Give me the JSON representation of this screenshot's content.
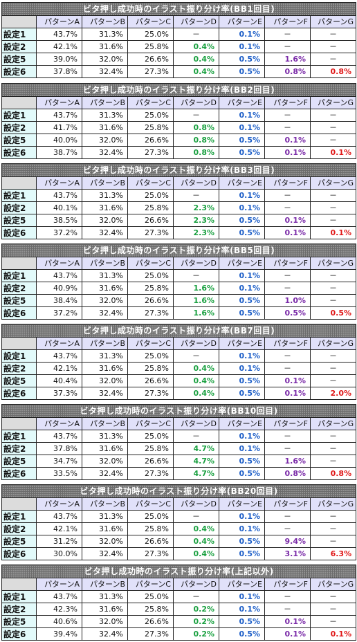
{
  "column_headers": [
    "パターンA",
    "パターンB",
    "パターンC",
    "パターンD",
    "パターンE",
    "パターンF",
    "パターンG"
  ],
  "colors": {
    "green": "#1aa040",
    "blue": "#1e5fc8",
    "purple": "#7a2aa8",
    "red": "#e01818",
    "header_bg": "#6c6c6c",
    "col_header_bg": "#e1e1fa",
    "row_header_bg": "#e2fafa"
  },
  "tables": [
    {
      "title": "ビタ押し成功時のイラスト振り分け率(BB1回目)",
      "rows": [
        {
          "label": "設定1",
          "values": [
            "43.7%",
            "31.3%",
            "25.0%",
            "－",
            "0.1%",
            "－",
            "－"
          ]
        },
        {
          "label": "設定2",
          "values": [
            "42.1%",
            "31.6%",
            "25.8%",
            "0.4%",
            "0.1%",
            "－",
            "－"
          ]
        },
        {
          "label": "設定5",
          "values": [
            "39.0%",
            "32.0%",
            "26.6%",
            "0.4%",
            "0.5%",
            "1.6%",
            "－"
          ]
        },
        {
          "label": "設定6",
          "values": [
            "37.8%",
            "32.4%",
            "27.3%",
            "0.4%",
            "0.5%",
            "0.8%",
            "0.8%"
          ]
        }
      ]
    },
    {
      "title": "ビタ押し成功時のイラスト振り分け率(BB2回目)",
      "rows": [
        {
          "label": "設定1",
          "values": [
            "43.7%",
            "31.3%",
            "25.0%",
            "－",
            "0.1%",
            "－",
            "－"
          ]
        },
        {
          "label": "設定2",
          "values": [
            "41.7%",
            "31.6%",
            "25.8%",
            "0.8%",
            "0.1%",
            "－",
            "－"
          ]
        },
        {
          "label": "設定5",
          "values": [
            "40.0%",
            "32.0%",
            "26.6%",
            "0.8%",
            "0.5%",
            "0.1%",
            "－"
          ]
        },
        {
          "label": "設定6",
          "values": [
            "38.7%",
            "32.4%",
            "27.3%",
            "0.8%",
            "0.5%",
            "0.1%",
            "0.1%"
          ]
        }
      ]
    },
    {
      "title": "ビタ押し成功時のイラスト振り分け率(BB3回目)",
      "rows": [
        {
          "label": "設定1",
          "values": [
            "43.7%",
            "31.3%",
            "25.0%",
            "－",
            "0.1%",
            "－",
            "－"
          ]
        },
        {
          "label": "設定2",
          "values": [
            "40.1%",
            "31.6%",
            "25.8%",
            "2.3%",
            "0.1%",
            "－",
            "－"
          ]
        },
        {
          "label": "設定5",
          "values": [
            "38.5%",
            "32.0%",
            "26.6%",
            "2.3%",
            "0.5%",
            "0.1%",
            "－"
          ]
        },
        {
          "label": "設定6",
          "values": [
            "37.2%",
            "32.4%",
            "27.3%",
            "2.3%",
            "0.5%",
            "0.1%",
            "0.1%"
          ]
        }
      ]
    },
    {
      "title": "ビタ押し成功時のイラスト振り分け率(BB5回目)",
      "rows": [
        {
          "label": "設定1",
          "values": [
            "43.7%",
            "31.3%",
            "25.0%",
            "－",
            "0.1%",
            "－",
            "－"
          ]
        },
        {
          "label": "設定2",
          "values": [
            "40.9%",
            "31.6%",
            "25.8%",
            "1.6%",
            "0.1%",
            "－",
            "－"
          ]
        },
        {
          "label": "設定5",
          "values": [
            "38.4%",
            "32.0%",
            "26.6%",
            "1.6%",
            "0.5%",
            "1.0%",
            "－"
          ]
        },
        {
          "label": "設定6",
          "values": [
            "37.2%",
            "32.4%",
            "27.3%",
            "1.6%",
            "0.5%",
            "0.5%",
            "0.5%"
          ]
        }
      ]
    },
    {
      "title": "ビタ押し成功時のイラスト振り分け率(BB7回目)",
      "rows": [
        {
          "label": "設定1",
          "values": [
            "43.7%",
            "31.3%",
            "25.0%",
            "－",
            "0.1%",
            "－",
            "－"
          ]
        },
        {
          "label": "設定2",
          "values": [
            "42.1%",
            "31.6%",
            "25.8%",
            "0.4%",
            "0.1%",
            "－",
            "－"
          ]
        },
        {
          "label": "設定5",
          "values": [
            "40.4%",
            "32.0%",
            "26.6%",
            "0.4%",
            "0.5%",
            "0.1%",
            "－"
          ]
        },
        {
          "label": "設定6",
          "values": [
            "37.3%",
            "32.4%",
            "27.3%",
            "0.4%",
            "0.5%",
            "0.1%",
            "2.0%"
          ]
        }
      ]
    },
    {
      "title": "ビタ押し成功時のイラスト振り分け率(BB10回目)",
      "rows": [
        {
          "label": "設定1",
          "values": [
            "43.7%",
            "31.3%",
            "25.0%",
            "－",
            "0.1%",
            "－",
            "－"
          ]
        },
        {
          "label": "設定2",
          "values": [
            "37.8%",
            "31.6%",
            "25.8%",
            "4.7%",
            "0.1%",
            "－",
            "－"
          ]
        },
        {
          "label": "設定5",
          "values": [
            "34.7%",
            "32.0%",
            "26.6%",
            "4.7%",
            "0.5%",
            "1.6%",
            "－"
          ]
        },
        {
          "label": "設定6",
          "values": [
            "33.5%",
            "32.4%",
            "27.3%",
            "4.7%",
            "0.5%",
            "0.8%",
            "0.8%"
          ]
        }
      ]
    },
    {
      "title": "ビタ押し成功時のイラスト振り分け率(BB20回目)",
      "rows": [
        {
          "label": "設定1",
          "values": [
            "43.7%",
            "31.3%",
            "25.0%",
            "－",
            "0.1%",
            "－",
            "－"
          ]
        },
        {
          "label": "設定2",
          "values": [
            "42.1%",
            "31.6%",
            "25.8%",
            "0.4%",
            "0.1%",
            "－",
            "－"
          ]
        },
        {
          "label": "設定5",
          "values": [
            "31.2%",
            "32.0%",
            "26.6%",
            "0.4%",
            "0.5%",
            "9.4%",
            "－"
          ]
        },
        {
          "label": "設定6",
          "values": [
            "30.0%",
            "32.4%",
            "27.3%",
            "0.4%",
            "0.5%",
            "3.1%",
            "6.3%"
          ]
        }
      ]
    },
    {
      "title": "ビタ押し成功時のイラスト振り分け率(上記以外)",
      "rows": [
        {
          "label": "設定1",
          "values": [
            "43.7%",
            "31.3%",
            "25.0%",
            "－",
            "0.1%",
            "－",
            "－"
          ]
        },
        {
          "label": "設定2",
          "values": [
            "42.3%",
            "31.6%",
            "25.8%",
            "0.2%",
            "0.1%",
            "－",
            "－"
          ]
        },
        {
          "label": "設定5",
          "values": [
            "40.6%",
            "32.0%",
            "26.6%",
            "0.2%",
            "0.5%",
            "0.1%",
            "－"
          ]
        },
        {
          "label": "設定6",
          "values": [
            "39.4%",
            "32.4%",
            "27.3%",
            "0.2%",
            "0.5%",
            "0.1%",
            "0.1%"
          ]
        }
      ]
    }
  ]
}
